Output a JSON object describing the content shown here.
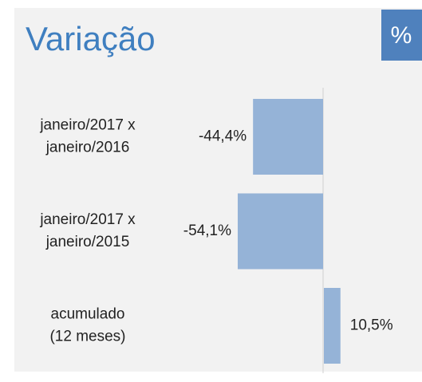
{
  "chart_data": {
    "type": "bar",
    "orientation": "horizontal",
    "title": "Variação",
    "badge": "%",
    "categories": [
      [
        "janeiro/2017 x",
        "janeiro/2016"
      ],
      [
        "janeiro/2017 x",
        "janeiro/2015"
      ],
      [
        "acumulado",
        "(12 meses)"
      ]
    ],
    "values": [
      -44.4,
      -54.1,
      10.5
    ],
    "value_labels": [
      "-44,4%",
      "-54,1%",
      "10,5%"
    ],
    "color": "#95b3d7"
  }
}
